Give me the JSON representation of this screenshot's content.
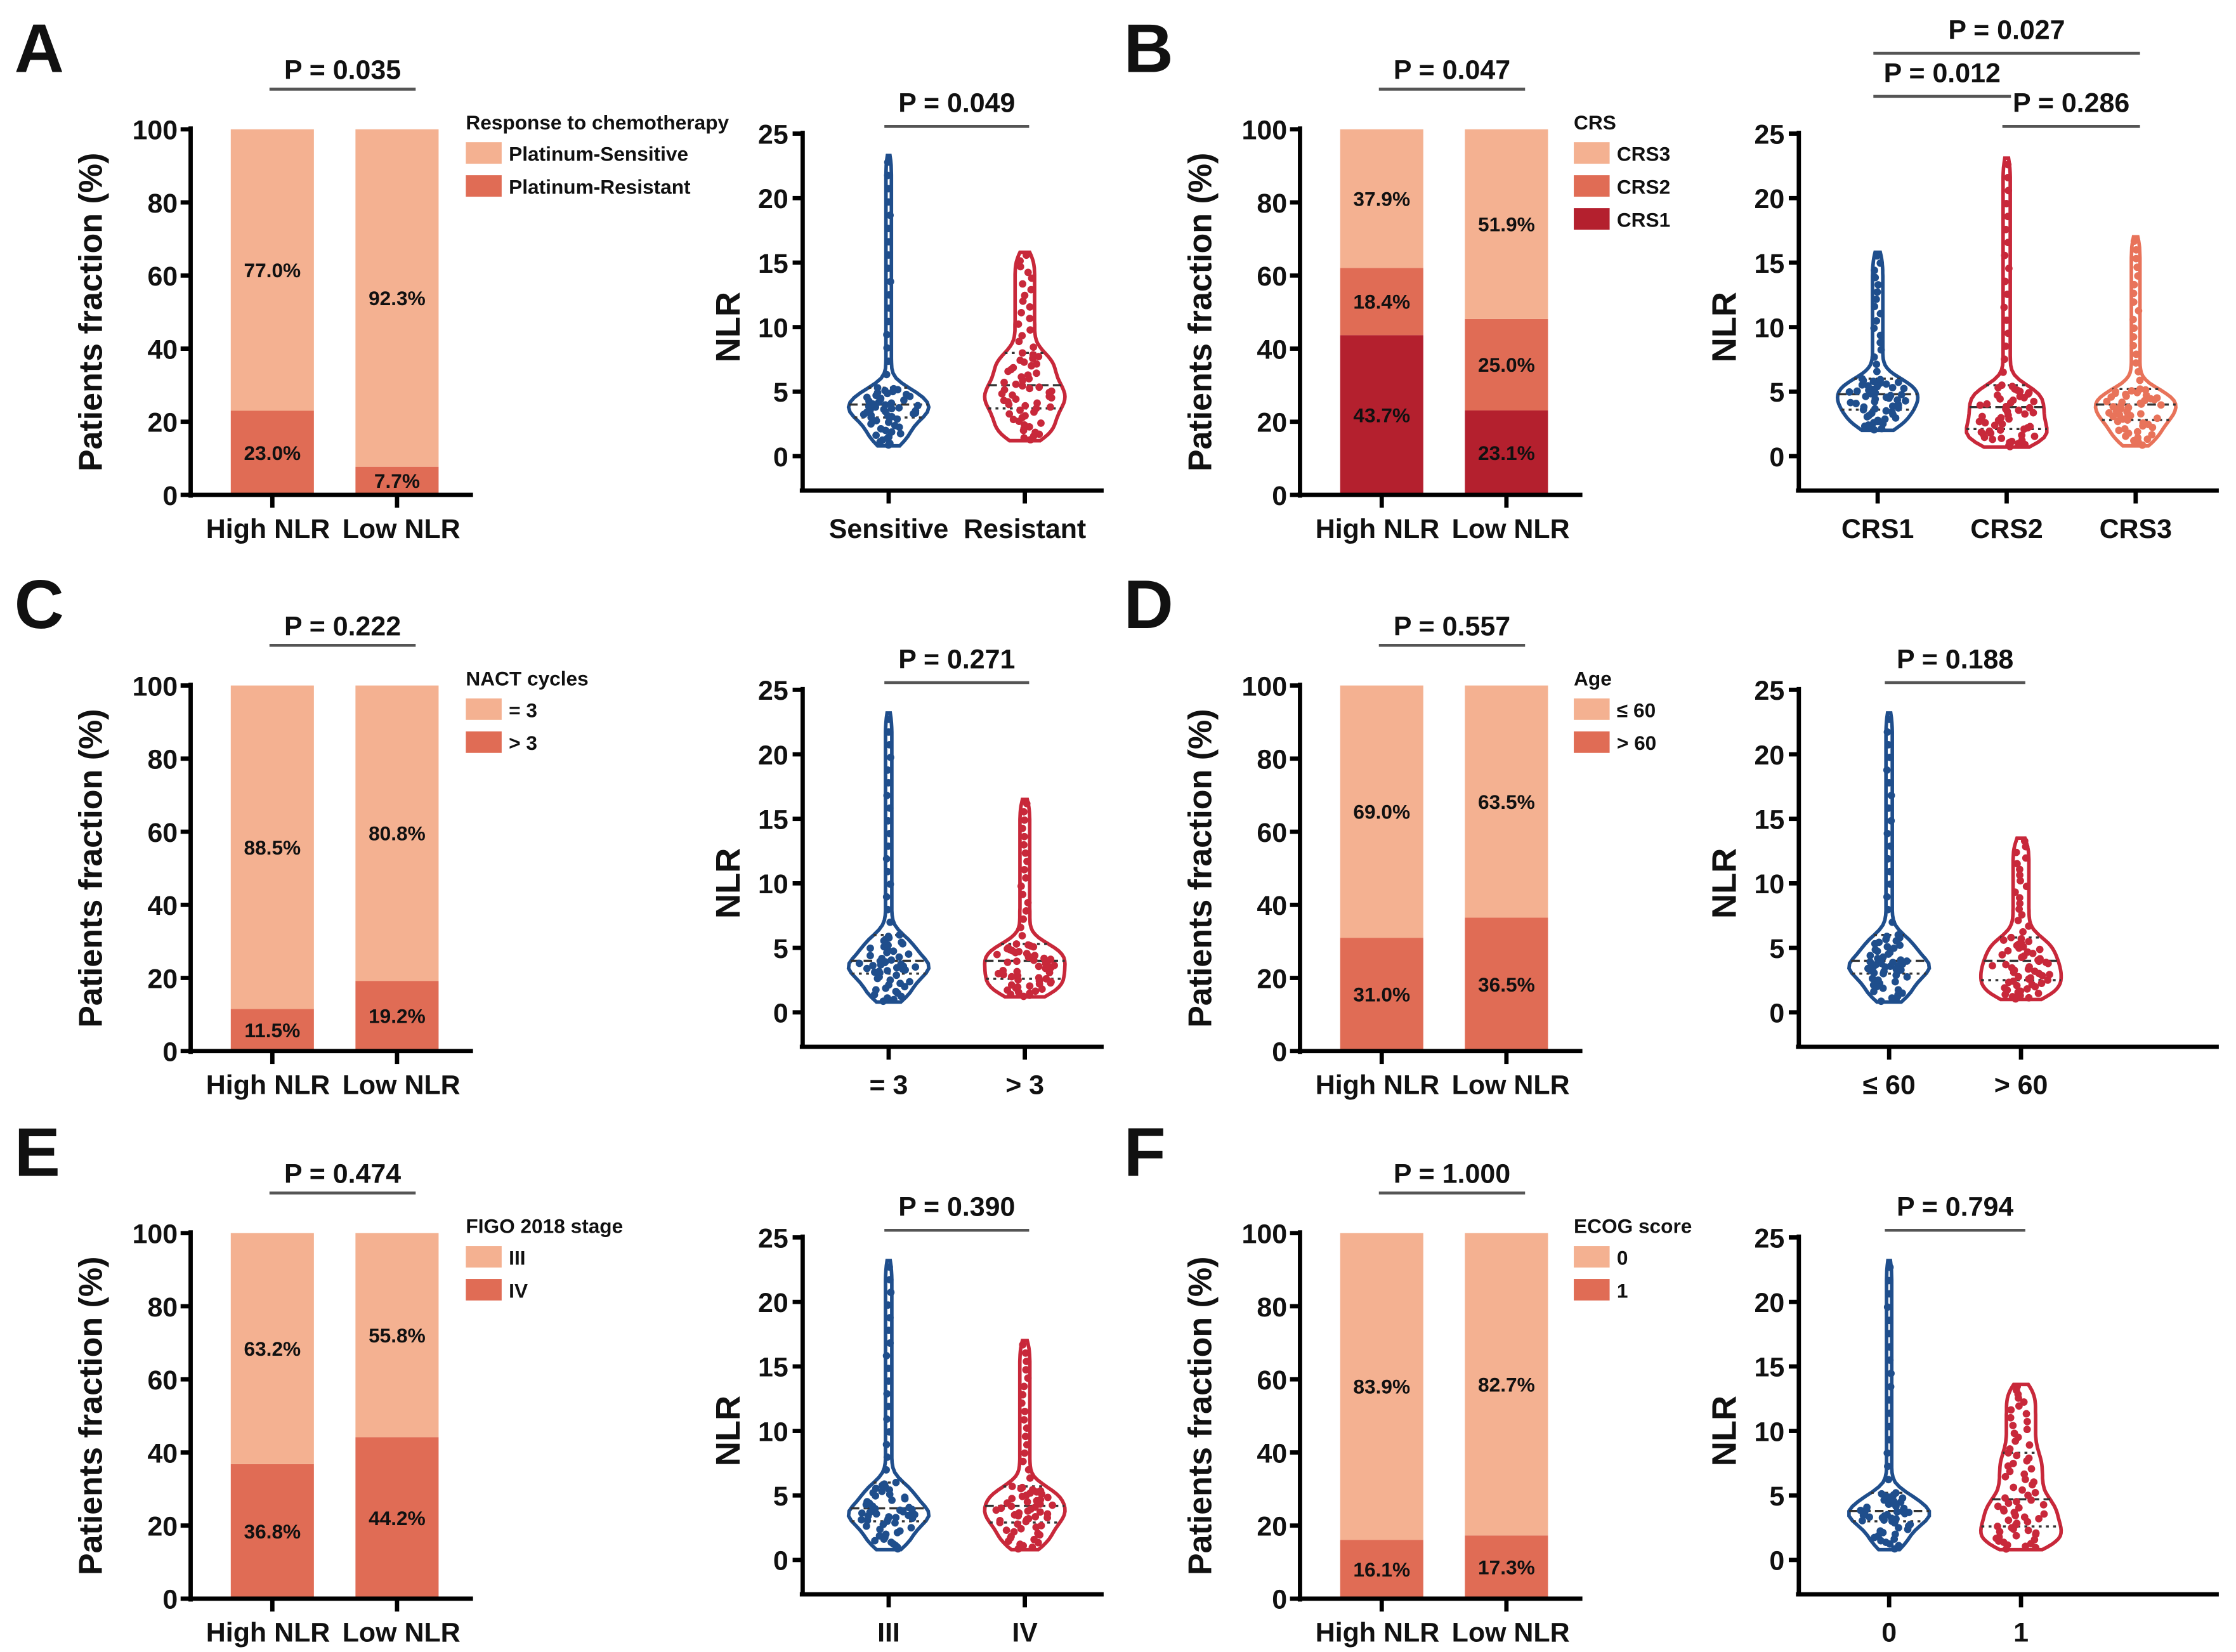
{
  "colors": {
    "light": "#f4b191",
    "mid": "#e06c55",
    "dark": "#b4202e",
    "blue": "#1f4e8c",
    "red": "#c8283a",
    "salmon": "#e8735a",
    "axis": "#000000",
    "bracket": "#555555"
  },
  "chart_data": [
    {
      "panel": "A",
      "bar": {
        "type": "bar",
        "stacked": true,
        "ylabel": "Patients fraction (%)",
        "ylim": [
          0,
          100
        ],
        "yticks": [
          "0",
          "20",
          "40",
          "60",
          "80",
          "100"
        ],
        "categories": [
          "High NLR",
          "Low NLR"
        ],
        "p_value": "P = 0.035",
        "legend_title": "Response to chemotherapy",
        "series": [
          {
            "name": "Platinum-Sensitive",
            "color": "#f4b191",
            "values": [
              77.0,
              92.3
            ],
            "labels": [
              "77.0%",
              "92.3%"
            ]
          },
          {
            "name": "Platinum-Resistant",
            "color": "#e06c55",
            "values": [
              23.0,
              7.7
            ],
            "labels": [
              "23.0%",
              "7.7%"
            ]
          }
        ]
      },
      "violin": {
        "type": "violin",
        "ylabel": "NLR",
        "ylim": [
          -2.7,
          25
        ],
        "yticks": [
          "0",
          "5",
          "10",
          "15",
          "20",
          "25"
        ],
        "groups": [
          {
            "name": "Sensitive",
            "color": "#1f4e8c",
            "min": 0.8,
            "q1": 3.0,
            "median": 4.0,
            "q3": 5.3,
            "max": 23.3
          },
          {
            "name": "Resistant",
            "color": "#c8283a",
            "min": 1.2,
            "q1": 3.7,
            "median": 5.5,
            "q3": 8.0,
            "max": 15.8
          }
        ],
        "comparisons": [
          {
            "groups": [
              0,
              1
            ],
            "p_value": "P = 0.049",
            "level": 0
          }
        ]
      }
    },
    {
      "panel": "B",
      "bar": {
        "type": "bar",
        "stacked": true,
        "ylabel": "Patients fraction (%)",
        "ylim": [
          0,
          100
        ],
        "yticks": [
          "0",
          "20",
          "40",
          "60",
          "80",
          "100"
        ],
        "categories": [
          "High NLR",
          "Low NLR"
        ],
        "p_value": "P = 0.047",
        "legend_title": "CRS",
        "series": [
          {
            "name": "CRS3",
            "color": "#f4b191",
            "values": [
              37.9,
              51.9
            ],
            "labels": [
              "37.9%",
              "51.9%"
            ]
          },
          {
            "name": "CRS2",
            "color": "#e06c55",
            "values": [
              18.4,
              25.0
            ],
            "labels": [
              "18.4%",
              "25.0%"
            ]
          },
          {
            "name": "CRS1",
            "color": "#b4202e",
            "values": [
              43.7,
              23.1
            ],
            "labels": [
              "43.7%",
              "23.1%"
            ]
          }
        ]
      },
      "violin": {
        "type": "violin",
        "ylabel": "NLR",
        "ylim": [
          -2.7,
          25
        ],
        "yticks": [
          "0",
          "5",
          "10",
          "15",
          "20",
          "25"
        ],
        "groups": [
          {
            "name": "CRS1",
            "color": "#1f4e8c",
            "min": 2.0,
            "q1": 3.6,
            "median": 4.8,
            "q3": 6.0,
            "max": 15.8
          },
          {
            "name": "CRS2",
            "color": "#c8283a",
            "min": 0.7,
            "q1": 2.1,
            "median": 3.8,
            "q3": 5.5,
            "max": 23.1
          },
          {
            "name": "CRS3",
            "color": "#e8735a",
            "min": 0.8,
            "q1": 2.8,
            "median": 4.0,
            "q3": 5.2,
            "max": 17.0
          }
        ],
        "comparisons": [
          {
            "groups": [
              0,
              2
            ],
            "p_value": "P = 0.027",
            "level": 2
          },
          {
            "groups": [
              0,
              1
            ],
            "p_value": "P = 0.012",
            "level": 1
          },
          {
            "groups": [
              1,
              2
            ],
            "p_value": "P = 0.286",
            "level": 0
          }
        ]
      }
    },
    {
      "panel": "C",
      "bar": {
        "type": "bar",
        "stacked": true,
        "ylabel": "Patients fraction (%)",
        "ylim": [
          0,
          100
        ],
        "yticks": [
          "0",
          "20",
          "40",
          "60",
          "80",
          "100"
        ],
        "categories": [
          "High NLR",
          "Low NLR"
        ],
        "p_value": "P = 0.222",
        "legend_title": "NACT cycles",
        "series": [
          {
            "name": "= 3",
            "color": "#f4b191",
            "values": [
              88.5,
              80.8
            ],
            "labels": [
              "88.5%",
              "80.8%"
            ]
          },
          {
            "name": "> 3",
            "color": "#e06c55",
            "values": [
              11.5,
              19.2
            ],
            "labels": [
              "11.5%",
              "19.2%"
            ]
          }
        ]
      },
      "violin": {
        "type": "violin",
        "ylabel": "NLR",
        "ylim": [
          -2.7,
          25
        ],
        "yticks": [
          "0",
          "5",
          "10",
          "15",
          "20",
          "25"
        ],
        "groups": [
          {
            "name": "= 3",
            "color": "#1f4e8c",
            "min": 0.8,
            "q1": 3.0,
            "median": 4.0,
            "q3": 6.0,
            "max": 23.2
          },
          {
            "name": "> 3",
            "color": "#c8283a",
            "min": 1.2,
            "q1": 2.6,
            "median": 4.0,
            "q3": 5.3,
            "max": 16.5
          }
        ],
        "comparisons": [
          {
            "groups": [
              0,
              1
            ],
            "p_value": "P = 0.271",
            "level": 0
          }
        ]
      }
    },
    {
      "panel": "D",
      "bar": {
        "type": "bar",
        "stacked": true,
        "ylabel": "Patients fraction (%)",
        "ylim": [
          0,
          100
        ],
        "yticks": [
          "0",
          "20",
          "40",
          "60",
          "80",
          "100"
        ],
        "categories": [
          "High NLR",
          "Low NLR"
        ],
        "p_value": "P = 0.557",
        "legend_title": "Age",
        "series": [
          {
            "name": "≤ 60",
            "color": "#f4b191",
            "values": [
              69.0,
              63.5
            ],
            "labels": [
              "69.0%",
              "63.5%"
            ]
          },
          {
            "name": "> 60",
            "color": "#e06c55",
            "values": [
              31.0,
              36.5
            ],
            "labels": [
              "31.0%",
              "36.5%"
            ]
          }
        ]
      },
      "violin": {
        "type": "violin",
        "ylabel": "NLR",
        "ylim": [
          -2.7,
          25
        ],
        "yticks": [
          "0",
          "5",
          "10",
          "15",
          "20",
          "25"
        ],
        "groups": [
          {
            "name": "≤ 60",
            "color": "#1f4e8c",
            "min": 0.8,
            "q1": 3.0,
            "median": 4.0,
            "q3": 6.0,
            "max": 23.2
          },
          {
            "name": "> 60",
            "color": "#c8283a",
            "min": 1.0,
            "q1": 2.5,
            "median": 4.0,
            "q3": 5.8,
            "max": 13.5
          }
        ],
        "comparisons": [
          {
            "groups": [
              0,
              1
            ],
            "p_value": "P = 0.188",
            "level": 0
          }
        ]
      }
    },
    {
      "panel": "E",
      "bar": {
        "type": "bar",
        "stacked": true,
        "ylabel": "Patients fraction (%)",
        "ylim": [
          0,
          100
        ],
        "yticks": [
          "0",
          "20",
          "40",
          "60",
          "80",
          "100"
        ],
        "categories": [
          "High NLR",
          "Low NLR"
        ],
        "p_value": "P = 0.474",
        "legend_title": "FIGO 2018 stage",
        "series": [
          {
            "name": "III",
            "color": "#f4b191",
            "values": [
              63.2,
              55.8
            ],
            "labels": [
              "63.2%",
              "55.8%"
            ]
          },
          {
            "name": "IV",
            "color": "#e06c55",
            "values": [
              36.8,
              44.2
            ],
            "labels": [
              "36.8%",
              "44.2%"
            ]
          }
        ]
      },
      "violin": {
        "type": "violin",
        "ylabel": "NLR",
        "ylim": [
          -2.7,
          25
        ],
        "yticks": [
          "0",
          "5",
          "10",
          "15",
          "20",
          "25"
        ],
        "groups": [
          {
            "name": "III",
            "color": "#1f4e8c",
            "min": 0.8,
            "q1": 3.0,
            "median": 4.0,
            "q3": 6.0,
            "max": 23.2
          },
          {
            "name": "IV",
            "color": "#c8283a",
            "min": 0.8,
            "q1": 2.9,
            "median": 4.2,
            "q3": 5.7,
            "max": 17.0
          }
        ],
        "comparisons": [
          {
            "groups": [
              0,
              1
            ],
            "p_value": "P = 0.390",
            "level": 0
          }
        ]
      }
    },
    {
      "panel": "F",
      "bar": {
        "type": "bar",
        "stacked": true,
        "ylabel": "Patients fraction (%)",
        "ylim": [
          0,
          100
        ],
        "yticks": [
          "0",
          "20",
          "40",
          "60",
          "80",
          "100"
        ],
        "categories": [
          "High NLR",
          "Low NLR"
        ],
        "p_value": "P = 1.000",
        "legend_title": "ECOG score",
        "series": [
          {
            "name": "0",
            "color": "#f4b191",
            "values": [
              83.9,
              82.7
            ],
            "labels": [
              "83.9%",
              "82.7%"
            ]
          },
          {
            "name": "1",
            "color": "#e06c55",
            "values": [
              16.1,
              17.3
            ],
            "labels": [
              "16.1%",
              "17.3%"
            ]
          }
        ]
      },
      "violin": {
        "type": "violin",
        "ylabel": "NLR",
        "ylim": [
          -2.7,
          25
        ],
        "yticks": [
          "0",
          "5",
          "10",
          "15",
          "20",
          "25"
        ],
        "groups": [
          {
            "name": "0",
            "color": "#1f4e8c",
            "min": 0.8,
            "q1": 3.0,
            "median": 3.8,
            "q3": 5.2,
            "max": 23.2
          },
          {
            "name": "1",
            "color": "#c8283a",
            "min": 0.8,
            "q1": 2.6,
            "median": 4.7,
            "q3": 8.3,
            "max": 13.6
          }
        ],
        "comparisons": [
          {
            "groups": [
              0,
              1
            ],
            "p_value": "P = 0.794",
            "level": 0
          }
        ]
      }
    }
  ]
}
